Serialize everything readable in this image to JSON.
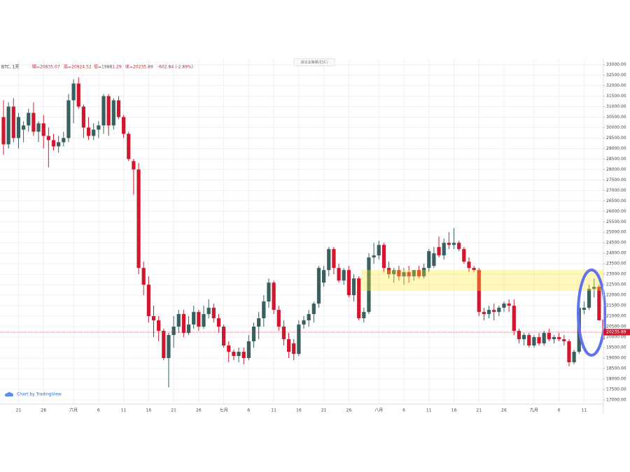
{
  "toolbar": {
    "symbol": "BTC, 1天",
    "open": "開=20835.07",
    "high": "高=20924.52",
    "low": "低=19881.29",
    "close": "收=20235.89",
    "change": "-602.84 (-2.89%)",
    "exit_button": "退出全螢幕(ESC)",
    "branding": "Chart by TradingView"
  },
  "chart_data": {
    "type": "candlestick",
    "up_color": "#37605f",
    "down_color": "#d0172d",
    "grid": true,
    "ylim": [
      16800,
      33250
    ],
    "yticks": [
      {
        "value": 17000,
        "label": "17000.00"
      },
      {
        "value": 17500,
        "label": "17500.00"
      },
      {
        "value": 18000,
        "label": "18000.00"
      },
      {
        "value": 18500,
        "label": "18500.00"
      },
      {
        "value": 19000,
        "label": "19000.00"
      },
      {
        "value": 19500,
        "label": "19500.00"
      },
      {
        "value": 20000,
        "label": "20000.00"
      },
      {
        "value": 20500,
        "label": "20500.00"
      },
      {
        "value": 21000,
        "label": "21000.00"
      },
      {
        "value": 21500,
        "label": "21500.00"
      },
      {
        "value": 22000,
        "label": "22000.00"
      },
      {
        "value": 22500,
        "label": "22500.00"
      },
      {
        "value": 23000,
        "label": "23000.00"
      },
      {
        "value": 23500,
        "label": "23500.00"
      },
      {
        "value": 24000,
        "label": "24000.00"
      },
      {
        "value": 24500,
        "label": "24500.00"
      },
      {
        "value": 25000,
        "label": "25000.00"
      },
      {
        "value": 25500,
        "label": "25500.00"
      },
      {
        "value": 26000,
        "label": "26000.00"
      },
      {
        "value": 26500,
        "label": "26500.00"
      },
      {
        "value": 27000,
        "label": "27000.00"
      },
      {
        "value": 27500,
        "label": "27500.00"
      },
      {
        "value": 28000,
        "label": "28000.00"
      },
      {
        "value": 28500,
        "label": "28500.00"
      },
      {
        "value": 29000,
        "label": "29000.00"
      },
      {
        "value": 29500,
        "label": "29500.00"
      },
      {
        "value": 30000,
        "label": "30000.00"
      },
      {
        "value": 30500,
        "label": "30500.00"
      },
      {
        "value": 31000,
        "label": "31000.00"
      },
      {
        "value": 31500,
        "label": "31500.00"
      },
      {
        "value": 32000,
        "label": "32000.00"
      },
      {
        "value": 32500,
        "label": "32500.00"
      },
      {
        "value": 33000,
        "label": "33000.00"
      }
    ],
    "last_price": 20235.89,
    "categories": [
      null,
      null,
      null,
      "21",
      null,
      null,
      null,
      null,
      "28",
      null,
      null,
      null,
      null,
      null,
      "六月",
      null,
      null,
      null,
      null,
      "6",
      null,
      null,
      null,
      null,
      "11",
      null,
      null,
      null,
      null,
      "16",
      null,
      null,
      null,
      null,
      "21",
      null,
      null,
      null,
      null,
      "26",
      null,
      null,
      null,
      null,
      "七月",
      null,
      null,
      null,
      null,
      "6",
      null,
      null,
      null,
      null,
      "11",
      null,
      null,
      null,
      null,
      "16",
      null,
      null,
      null,
      null,
      "21",
      null,
      null,
      null,
      null,
      "26",
      null,
      null,
      null,
      null,
      null,
      "八月",
      null,
      null,
      null,
      null,
      "6",
      null,
      null,
      null,
      null,
      "11",
      null,
      null,
      null,
      null,
      "16",
      null,
      null,
      null,
      null,
      "21",
      null,
      null,
      null,
      null,
      "26",
      null,
      null,
      null,
      null,
      null,
      "九月",
      null,
      null,
      null,
      null,
      "6",
      null,
      null,
      null,
      null,
      "11",
      null,
      null,
      null
    ],
    "ohlc": [
      [
        30500,
        31300,
        28700,
        29200
      ],
      [
        29200,
        31200,
        29000,
        31000
      ],
      [
        31000,
        31400,
        29300,
        29500
      ],
      [
        29500,
        30700,
        29000,
        30500
      ],
      [
        29900,
        30300,
        29300,
        30100
      ],
      [
        30100,
        30900,
        29800,
        30700
      ],
      [
        30700,
        31200,
        29600,
        29800
      ],
      [
        29800,
        30300,
        29300,
        30200
      ],
      [
        30200,
        30600,
        29000,
        29600
      ],
      [
        29600,
        30000,
        28100,
        29400
      ],
      [
        29400,
        29700,
        28900,
        29100
      ],
      [
        29100,
        29600,
        28800,
        29300
      ],
      [
        29300,
        29800,
        29100,
        29500
      ],
      [
        29500,
        31600,
        29300,
        31300
      ],
      [
        31300,
        32300,
        30200,
        32100
      ],
      [
        32100,
        32400,
        30900,
        31000
      ],
      [
        31000,
        31100,
        29500,
        30000
      ],
      [
        30000,
        30500,
        29400,
        29600
      ],
      [
        29600,
        30200,
        29400,
        29900
      ],
      [
        29900,
        30300,
        29500,
        30100
      ],
      [
        30100,
        31600,
        29700,
        31500
      ],
      [
        31500,
        31600,
        29600,
        30100
      ],
      [
        30100,
        31400,
        29900,
        31300
      ],
      [
        31300,
        31500,
        30400,
        30500
      ],
      [
        30500,
        30600,
        29500,
        29700
      ],
      [
        29700,
        29800,
        28400,
        28500
      ],
      [
        28400,
        28500,
        26800,
        28000
      ],
      [
        28000,
        28300,
        23000,
        23300
      ],
      [
        23300,
        23600,
        22000,
        22500
      ],
      [
        22500,
        22900,
        20700,
        21000
      ],
      [
        21000,
        21500,
        20000,
        20800
      ],
      [
        20800,
        21000,
        19800,
        20300
      ],
      [
        20300,
        20400,
        18900,
        19000
      ],
      [
        19000,
        20200,
        17600,
        20100
      ],
      [
        20100,
        21000,
        19500,
        20500
      ],
      [
        20500,
        21300,
        20200,
        21100
      ],
      [
        21100,
        21300,
        20000,
        20200
      ],
      [
        20200,
        21000,
        20100,
        20600
      ],
      [
        20600,
        21500,
        20400,
        21200
      ],
      [
        21200,
        21300,
        20300,
        20500
      ],
      [
        20500,
        21500,
        20400,
        21100
      ],
      [
        21100,
        21800,
        20900,
        21400
      ],
      [
        21400,
        21600,
        20700,
        20900
      ],
      [
        20900,
        21100,
        20200,
        20500
      ],
      [
        20500,
        20600,
        19500,
        19600
      ],
      [
        19600,
        19800,
        18800,
        19300
      ],
      [
        19300,
        19400,
        18900,
        19100
      ],
      [
        19100,
        19500,
        18800,
        19300
      ],
      [
        19300,
        19500,
        18700,
        19000
      ],
      [
        19000,
        20100,
        18900,
        19800
      ],
      [
        19800,
        20700,
        19500,
        20500
      ],
      [
        20500,
        21200,
        19900,
        20900
      ],
      [
        20900,
        22000,
        20500,
        21700
      ],
      [
        21700,
        22800,
        21400,
        22600
      ],
      [
        22600,
        22700,
        21100,
        21300
      ],
      [
        21300,
        21500,
        20300,
        20500
      ],
      [
        20500,
        20800,
        19600,
        19900
      ],
      [
        19900,
        20200,
        19000,
        19300
      ],
      [
        19700,
        19900,
        18900,
        19200
      ],
      [
        19200,
        20800,
        19100,
        20600
      ],
      [
        20600,
        21000,
        20400,
        20800
      ],
      [
        20800,
        21300,
        20500,
        21100
      ],
      [
        21100,
        21700,
        20700,
        21600
      ],
      [
        21600,
        23400,
        21400,
        23300
      ],
      [
        22600,
        23400,
        22400,
        23200
      ],
      [
        23200,
        24300,
        22900,
        24200
      ],
      [
        24200,
        24300,
        23000,
        23300
      ],
      [
        23300,
        23500,
        22600,
        22700
      ],
      [
        22700,
        23300,
        22500,
        23200
      ],
      [
        23200,
        23400,
        21900,
        22000
      ],
      [
        22000,
        23000,
        21700,
        22800
      ],
      [
        22800,
        22900,
        20800,
        20900
      ],
      [
        20900,
        21400,
        20700,
        21200
      ],
      [
        21200,
        24000,
        21100,
        23800
      ],
      [
        23800,
        24500,
        23500,
        23900
      ],
      [
        23900,
        24600,
        23700,
        24400
      ],
      [
        24400,
        24500,
        23100,
        23300
      ],
      [
        23300,
        23600,
        22800,
        23000
      ],
      [
        23000,
        23300,
        22600,
        23200
      ],
      [
        23200,
        23400,
        22700,
        22900
      ],
      [
        22900,
        23300,
        22500,
        23100
      ],
      [
        23100,
        23400,
        22600,
        22900
      ],
      [
        22900,
        23200,
        22700,
        23200
      ],
      [
        23200,
        23400,
        22800,
        22900
      ],
      [
        22900,
        23500,
        22800,
        23300
      ],
      [
        23300,
        24200,
        23100,
        24100
      ],
      [
        23400,
        24300,
        23300,
        24000
      ],
      [
        24300,
        24800,
        23800,
        23900
      ],
      [
        23900,
        24700,
        23700,
        24500
      ],
      [
        24500,
        25000,
        24200,
        24400
      ],
      [
        24400,
        25200,
        24200,
        24500
      ],
      [
        24500,
        24600,
        24100,
        24200
      ],
      [
        24200,
        24300,
        23500,
        23600
      ],
      [
        23600,
        23800,
        23100,
        23300
      ],
      [
        23300,
        23400,
        23100,
        23200
      ],
      [
        23200,
        23300,
        21000,
        21200
      ],
      [
        21200,
        21400,
        20800,
        21100
      ],
      [
        21100,
        21500,
        20900,
        21300
      ],
      [
        21300,
        21600,
        20800,
        21200
      ],
      [
        21200,
        21500,
        21000,
        21400
      ],
      [
        21400,
        21700,
        21200,
        21600
      ],
      [
        21600,
        21800,
        21200,
        21500
      ],
      [
        21500,
        21800,
        20100,
        20300
      ],
      [
        20300,
        20400,
        19700,
        19900
      ],
      [
        19900,
        20200,
        19600,
        20100
      ],
      [
        20100,
        20200,
        19500,
        19600
      ],
      [
        19600,
        20100,
        19500,
        20000
      ],
      [
        20000,
        20200,
        19600,
        19700
      ],
      [
        19700,
        20300,
        19600,
        20200
      ],
      [
        20200,
        20400,
        19800,
        19900
      ],
      [
        19900,
        20100,
        19700,
        20000
      ],
      [
        20000,
        20200,
        19800,
        19900
      ],
      [
        19900,
        20100,
        19600,
        19800
      ],
      [
        19800,
        19900,
        18600,
        18800
      ],
      [
        18800,
        19400,
        18700,
        19300
      ],
      [
        19300,
        21500,
        19200,
        21400
      ],
      [
        21300,
        21700,
        21100,
        21400
      ],
      [
        21400,
        22500,
        21300,
        22300
      ],
      [
        22300,
        22800,
        21900,
        22400
      ],
      [
        22400,
        22500,
        20800,
        20800
      ],
      [
        20835.07,
        20924.52,
        19881.29,
        20235.89
      ]
    ]
  }
}
